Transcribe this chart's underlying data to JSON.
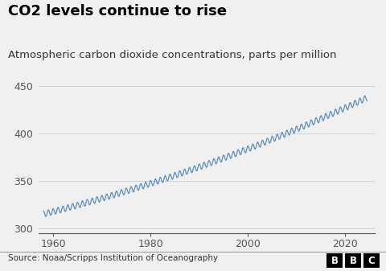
{
  "title": "CO2 levels continue to rise",
  "subtitle": "Atmospheric carbon dioxide concentrations, parts per million",
  "source_text": "Source: Noaa/Scripps Institution of Oceanography",
  "line_color": "#5b8db8",
  "background_color": "#f0f0f0",
  "plot_background": "#f0f0f0",
  "title_color": "#000000",
  "subtitle_color": "#333333",
  "source_color": "#333333",
  "yticks": [
    300,
    350,
    400,
    450
  ],
  "xticks": [
    1960,
    1980,
    2000,
    2020
  ],
  "xlim": [
    1957,
    2026
  ],
  "ylim": [
    295,
    455
  ],
  "line_width": 0.9,
  "title_fontsize": 13,
  "subtitle_fontsize": 9.5,
  "tick_fontsize": 9,
  "source_fontsize": 7.5
}
